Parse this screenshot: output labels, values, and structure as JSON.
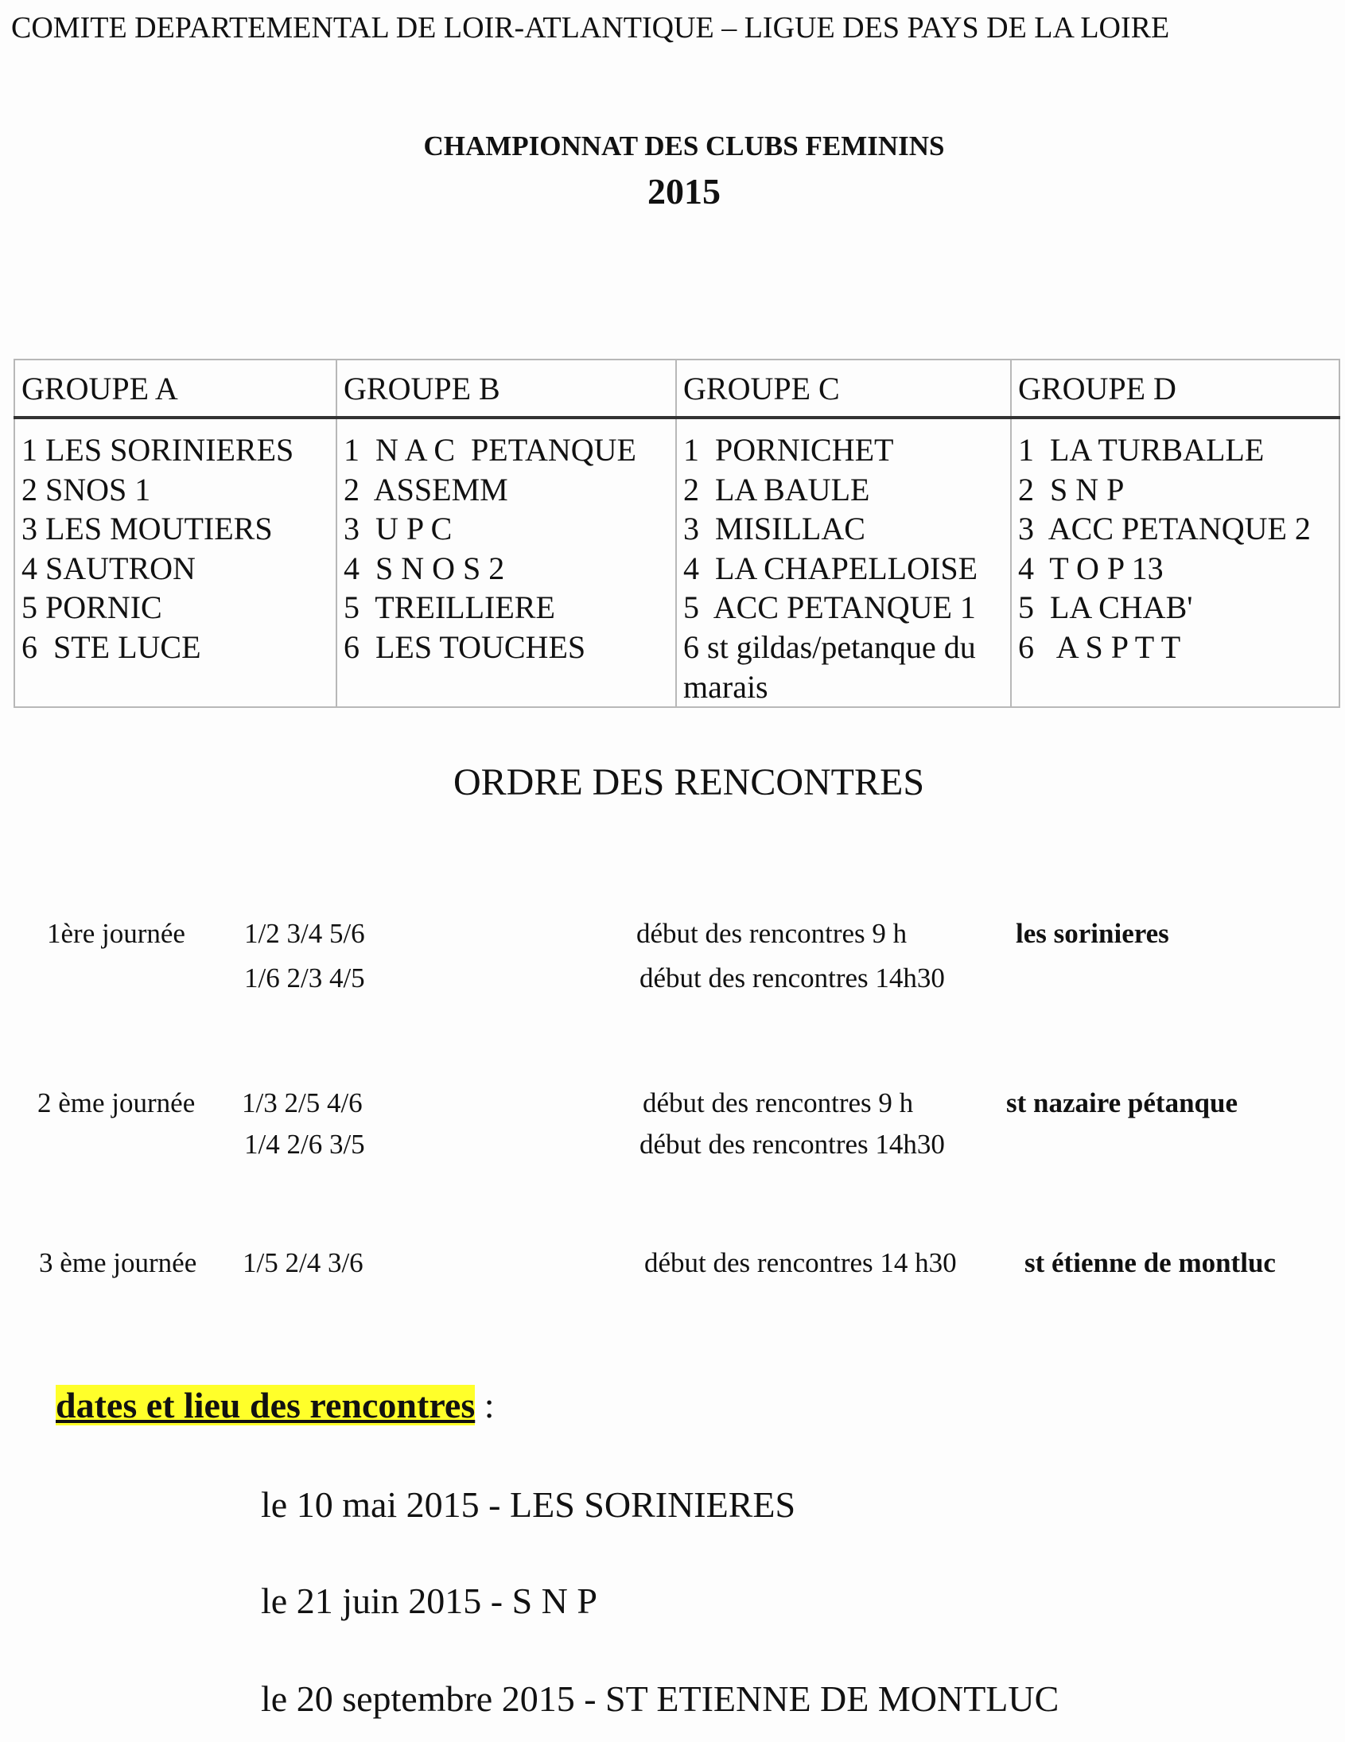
{
  "header": "COMITE DEPARTEMENTAL DE LOIR-ATLANTIQUE – LIGUE DES PAYS DE LA LOIRE",
  "title": "CHAMPIONNAT DES CLUBS FEMININS",
  "year": "2015",
  "groups": [
    {
      "name": "GROUPE A",
      "teams": [
        "1 LES SORINIERES",
        "2 SNOS 1",
        "3 LES MOUTIERS",
        "4 SAUTRON",
        "5 PORNIC",
        "6  STE LUCE"
      ]
    },
    {
      "name": "GROUPE B",
      "teams": [
        "1  N A C  PETANQUE",
        "2  ASSEMM",
        "3  U P C",
        "4  S N O S 2",
        "5  TREILLIERE",
        "6  LES TOUCHES"
      ]
    },
    {
      "name": "GROUPE C",
      "teams": [
        "1  PORNICHET",
        "2  LA BAULE",
        "3  MISILLAC",
        "4  LA CHAPELLOISE",
        "5  ACC PETANQUE 1",
        "6 st gildas/petanque du marais"
      ]
    },
    {
      "name": "GROUPE D",
      "teams": [
        "1  LA TURBALLE",
        "2  S N P",
        "3  ACC PETANQUE 2",
        "4  T O P 13",
        "5  LA CHAB'",
        "6   A S P T T"
      ]
    }
  ],
  "order_title": "ORDRE DES RENCONTRES",
  "rounds": [
    {
      "label": "1ère  journée",
      "lines": [
        {
          "matches": "1/2  3/4  5/6",
          "start": "début des rencontres  9 h",
          "place": "les sorinieres"
        },
        {
          "matches": "1/6  2/3  4/5",
          "start": "début des rencontres  14h30",
          "place": ""
        }
      ]
    },
    {
      "label": "2 ème journée",
      "lines": [
        {
          "matches": "1/3  2/5  4/6",
          "start": "début des rencontres  9 h",
          "place": "st nazaire pétanque"
        },
        {
          "matches": "1/4  2/6  3/5",
          "start": "début des rencontres 14h30",
          "place": ""
        }
      ]
    },
    {
      "label": "3 ème journée",
      "lines": [
        {
          "matches": "1/5  2/4  3/6",
          "start": "début des rencontres 14 h30",
          "place": "st étienne de montluc"
        }
      ]
    }
  ],
  "dates_heading": "dates et lieu des rencontres",
  "dates_colon": ":",
  "highlight_color": "#ffff2a",
  "dates": [
    "le 10 mai 2015  - LES SORINIERES",
    "le 21 juin 2015  -    S N P",
    "le 20 septembre 2015  - ST ETIENNE DE MONTLUC"
  ]
}
